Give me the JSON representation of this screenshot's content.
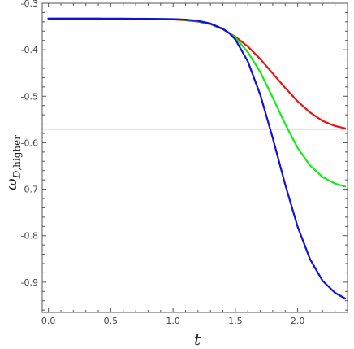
{
  "chart_data": {
    "type": "line",
    "xlabel": "t",
    "ylabel": {
      "main": "ω",
      "subscript_italic": "D",
      "subscript_rest": ",higher"
    },
    "xlim": [
      -0.05,
      2.4
    ],
    "ylim": [
      -0.965,
      -0.3
    ],
    "x_ticks": [
      0.0,
      0.5,
      1.0,
      1.5,
      2.0
    ],
    "x_tick_labels": [
      "0.0",
      "0.5",
      "1.0",
      "1.5",
      "2.0"
    ],
    "y_ticks": [
      -0.3,
      -0.4,
      -0.5,
      -0.6,
      -0.7,
      -0.8,
      -0.9
    ],
    "y_tick_labels": [
      "-0.3",
      "-0.4",
      "-0.5",
      "-0.6",
      "-0.7",
      "-0.8",
      "-0.9"
    ],
    "grid": false,
    "reference_line": {
      "y": -0.5707,
      "color": "#333333"
    },
    "series": [
      {
        "color": "#ee1111",
        "x": [
          0.0,
          0.2,
          0.4,
          0.6,
          0.8,
          1.0,
          1.1,
          1.2,
          1.3,
          1.4,
          1.45,
          1.5,
          1.6,
          1.7,
          1.8,
          1.9,
          2.0,
          2.1,
          2.2,
          2.3,
          2.38
        ],
        "y": [
          -0.333,
          -0.333,
          -0.3331,
          -0.3333,
          -0.3338,
          -0.3348,
          -0.3365,
          -0.3395,
          -0.345,
          -0.356,
          -0.364,
          -0.372,
          -0.393,
          -0.42,
          -0.451,
          -0.482,
          -0.511,
          -0.535,
          -0.553,
          -0.564,
          -0.569
        ]
      },
      {
        "color": "#11ee11",
        "x": [
          0.0,
          0.2,
          0.4,
          0.6,
          0.8,
          1.0,
          1.1,
          1.2,
          1.3,
          1.4,
          1.45,
          1.5,
          1.6,
          1.7,
          1.8,
          1.9,
          2.0,
          2.1,
          2.2,
          2.3,
          2.38
        ],
        "y": [
          -0.333,
          -0.333,
          -0.3331,
          -0.3332,
          -0.3336,
          -0.3343,
          -0.3357,
          -0.3385,
          -0.3443,
          -0.3555,
          -0.364,
          -0.374,
          -0.405,
          -0.448,
          -0.503,
          -0.56,
          -0.611,
          -0.649,
          -0.674,
          -0.688,
          -0.694
        ]
      },
      {
        "color": "#1111dd",
        "x": [
          0.0,
          0.2,
          0.4,
          0.6,
          0.8,
          1.0,
          1.1,
          1.2,
          1.3,
          1.4,
          1.45,
          1.5,
          1.6,
          1.7,
          1.8,
          1.9,
          2.0,
          2.1,
          2.2,
          2.3,
          2.38
        ],
        "y": [
          -0.333,
          -0.333,
          -0.3331,
          -0.3332,
          -0.3335,
          -0.334,
          -0.3352,
          -0.3377,
          -0.3435,
          -0.355,
          -0.364,
          -0.378,
          -0.425,
          -0.497,
          -0.59,
          -0.69,
          -0.781,
          -0.851,
          -0.897,
          -0.923,
          -0.935
        ]
      }
    ]
  }
}
